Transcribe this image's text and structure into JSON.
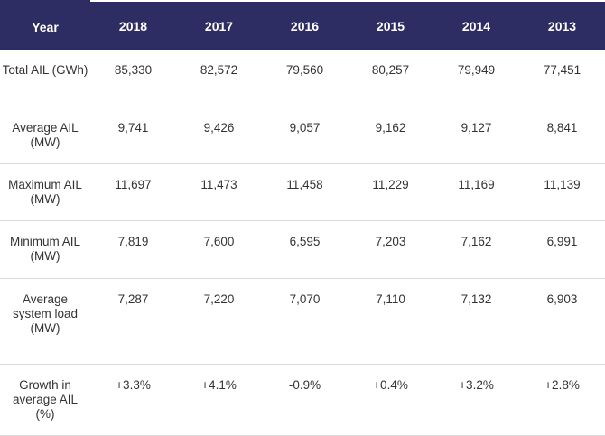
{
  "header": {
    "label": "Year",
    "years": [
      "2018",
      "2017",
      "2016",
      "2015",
      "2014",
      "2013"
    ]
  },
  "rows": [
    {
      "label": "Total AIL (GWh)",
      "values": [
        "85,330",
        "82,572",
        "79,560",
        "80,257",
        "79,949",
        "77,451"
      ]
    },
    {
      "label": "Average AIL (MW)",
      "values": [
        "9,741",
        "9,426",
        "9,057",
        "9,162",
        "9,127",
        "8,841"
      ]
    },
    {
      "label": "Maximum AIL (MW)",
      "values": [
        "11,697",
        "11,473",
        "11,458",
        "11,229",
        "11,169",
        "11,139"
      ]
    },
    {
      "label": "Minimum AIL (MW)",
      "values": [
        "7,819",
        "7,600",
        "6,595",
        "7,203",
        "7,162",
        "6,991"
      ]
    },
    {
      "label": "Average system load (MW)",
      "values": [
        "7,287",
        "7,220",
        "7,070",
        "7,110",
        "7,132",
        "6,903"
      ]
    },
    {
      "label": "Growth in average AIL (%)",
      "values": [
        "+3.3%",
        "+4.1%",
        "-0.9%",
        "+0.4%",
        "+3.2%",
        "+2.8%"
      ]
    }
  ],
  "colors": {
    "header_bg": "#2e2d63",
    "header_text": "#ffffff",
    "body_text": "#333333",
    "row_border": "#d9d9d9"
  }
}
